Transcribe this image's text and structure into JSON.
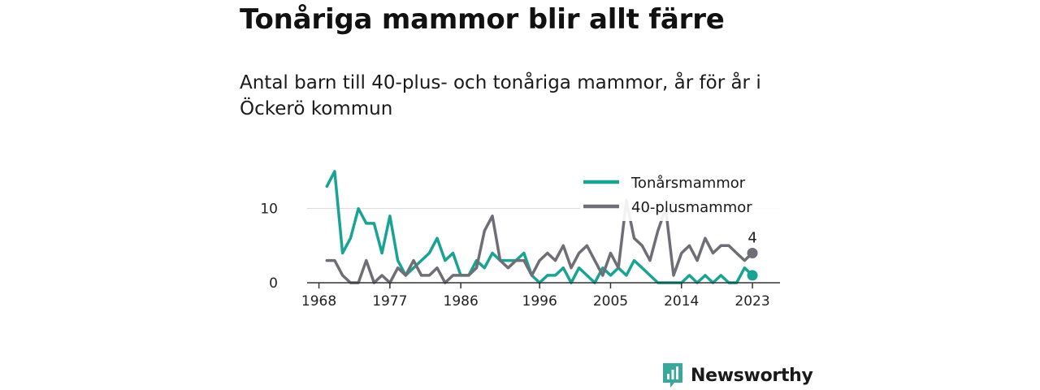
{
  "title": "Tonåriga mammor blir allt färre",
  "subtitle": "Antal barn till 40-plus- och tonåriga mammor, år för år i Öckerö kommun",
  "brand": {
    "name": "Newsworthy",
    "icon": "newsworthy-logo-icon",
    "color": "#3aa79c"
  },
  "chart_data": {
    "type": "line",
    "title": "",
    "xlabel": "",
    "ylabel": "",
    "x": [
      1968,
      1969,
      1970,
      1971,
      1972,
      1973,
      1974,
      1975,
      1976,
      1977,
      1978,
      1979,
      1980,
      1981,
      1982,
      1983,
      1984,
      1985,
      1986,
      1987,
      1988,
      1989,
      1990,
      1991,
      1992,
      1993,
      1994,
      1995,
      1996,
      1997,
      1998,
      1999,
      2000,
      2001,
      2002,
      2003,
      2004,
      2005,
      2006,
      2007,
      2008,
      2009,
      2010,
      2011,
      2012,
      2013,
      2014,
      2015,
      2016,
      2017,
      2018,
      2019,
      2020,
      2021,
      2022,
      2023
    ],
    "xlim": [
      1966.5,
      2026.5
    ],
    "ylim": [
      0,
      15
    ],
    "xticks": [
      1968,
      1977,
      1986,
      1996,
      2005,
      2014,
      2023
    ],
    "xtick_labels": [
      "1968",
      "1977",
      "1986",
      "1996",
      "2005",
      "2014",
      "2023"
    ],
    "yticks": [
      0,
      10
    ],
    "ytick_labels": [
      "0",
      "10"
    ],
    "grid": "horizontal",
    "legend": "top-right",
    "series": [
      {
        "name": "Tonårsmammor",
        "color": "#1aa394",
        "values": [
          null,
          13,
          15,
          4,
          6,
          10,
          8,
          8,
          4,
          9,
          3,
          1,
          2,
          3,
          4,
          6,
          3,
          4,
          1,
          1,
          3,
          2,
          4,
          3,
          3,
          3,
          4,
          1,
          0,
          1,
          1,
          2,
          0,
          2,
          1,
          0,
          2,
          1,
          2,
          1,
          3,
          2,
          1,
          0,
          0,
          0,
          0,
          1,
          0,
          1,
          0,
          1,
          0,
          0,
          2,
          1
        ],
        "end_label": ""
      },
      {
        "name": "40-plusmammor",
        "color": "#6f6e77",
        "values": [
          null,
          3,
          3,
          1,
          0,
          0,
          3,
          0,
          1,
          0,
          2,
          1,
          3,
          1,
          1,
          2,
          0,
          1,
          1,
          1,
          2,
          7,
          9,
          3,
          2,
          3,
          3,
          1,
          3,
          4,
          3,
          5,
          2,
          4,
          5,
          3,
          1,
          4,
          2,
          11,
          6,
          5,
          3,
          7,
          10,
          1,
          4,
          5,
          3,
          6,
          4,
          5,
          5,
          4,
          3,
          4
        ],
        "end_label": "4"
      }
    ]
  }
}
